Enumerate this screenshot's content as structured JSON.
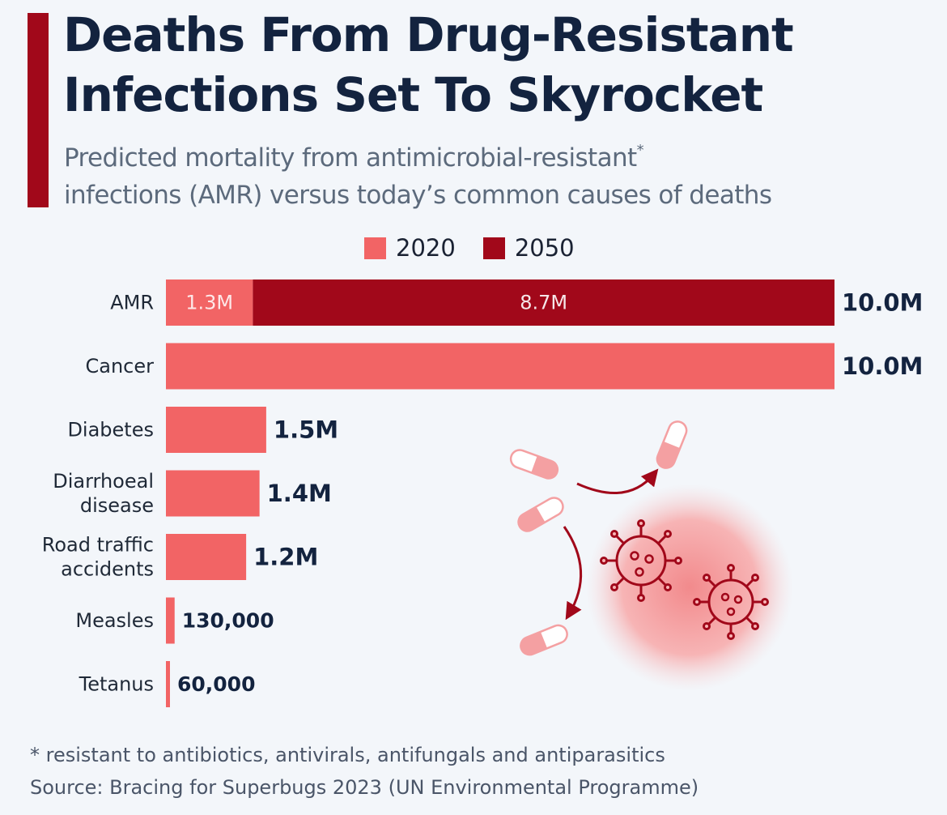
{
  "title_line1": "Deaths From Drug-Resistant",
  "title_line2": "Infections Set To Skyrocket",
  "subtitle_line1": "Predicted mortality from antimicrobial-resistant",
  "subtitle_asterisk": "*",
  "subtitle_line2": "infections (AMR) versus today’s common causes of deaths",
  "footnote": "* resistant to antibiotics, antivirals, antifungals and antiparasitics",
  "source": "Source: Bracing for Superbugs 2023 (UN Environmental Programme)",
  "colors": {
    "accent": "#a1081a",
    "series_2020": "#f26465",
    "series_2050": "#a1081a",
    "title": "#13233f"
  },
  "chart_data": {
    "type": "bar",
    "orientation": "horizontal",
    "stacked": true,
    "legend": [
      {
        "name": "2020",
        "color": "#f26465"
      },
      {
        "name": "2050",
        "color": "#a1081a"
      }
    ],
    "xlim": [
      0,
      10000000
    ],
    "categories": [
      {
        "label": [
          "AMR"
        ],
        "segments": [
          {
            "series": "2020",
            "value": 1300000,
            "label": "1.3M"
          },
          {
            "series": "2050",
            "value": 8700000,
            "label": "8.7M"
          }
        ],
        "total_label": "10.0M"
      },
      {
        "label": [
          "Cancer"
        ],
        "segments": [
          {
            "series": "2020",
            "value": 10000000
          }
        ],
        "total_label": "10.0M"
      },
      {
        "label": [
          "Diabetes"
        ],
        "segments": [
          {
            "series": "2020",
            "value": 1500000
          }
        ],
        "total_label": "1.5M"
      },
      {
        "label": [
          "Diarrhoeal",
          "disease"
        ],
        "segments": [
          {
            "series": "2020",
            "value": 1400000
          }
        ],
        "total_label": "1.4M"
      },
      {
        "label": [
          "Road traffic",
          "accidents"
        ],
        "segments": [
          {
            "series": "2020",
            "value": 1200000
          }
        ],
        "total_label": "1.2M"
      },
      {
        "label": [
          "Measles"
        ],
        "segments": [
          {
            "series": "2020",
            "value": 130000
          }
        ],
        "total_label": "130,000"
      },
      {
        "label": [
          "Tetanus"
        ],
        "segments": [
          {
            "series": "2020",
            "value": 60000
          }
        ],
        "total_label": "60,000"
      }
    ]
  }
}
